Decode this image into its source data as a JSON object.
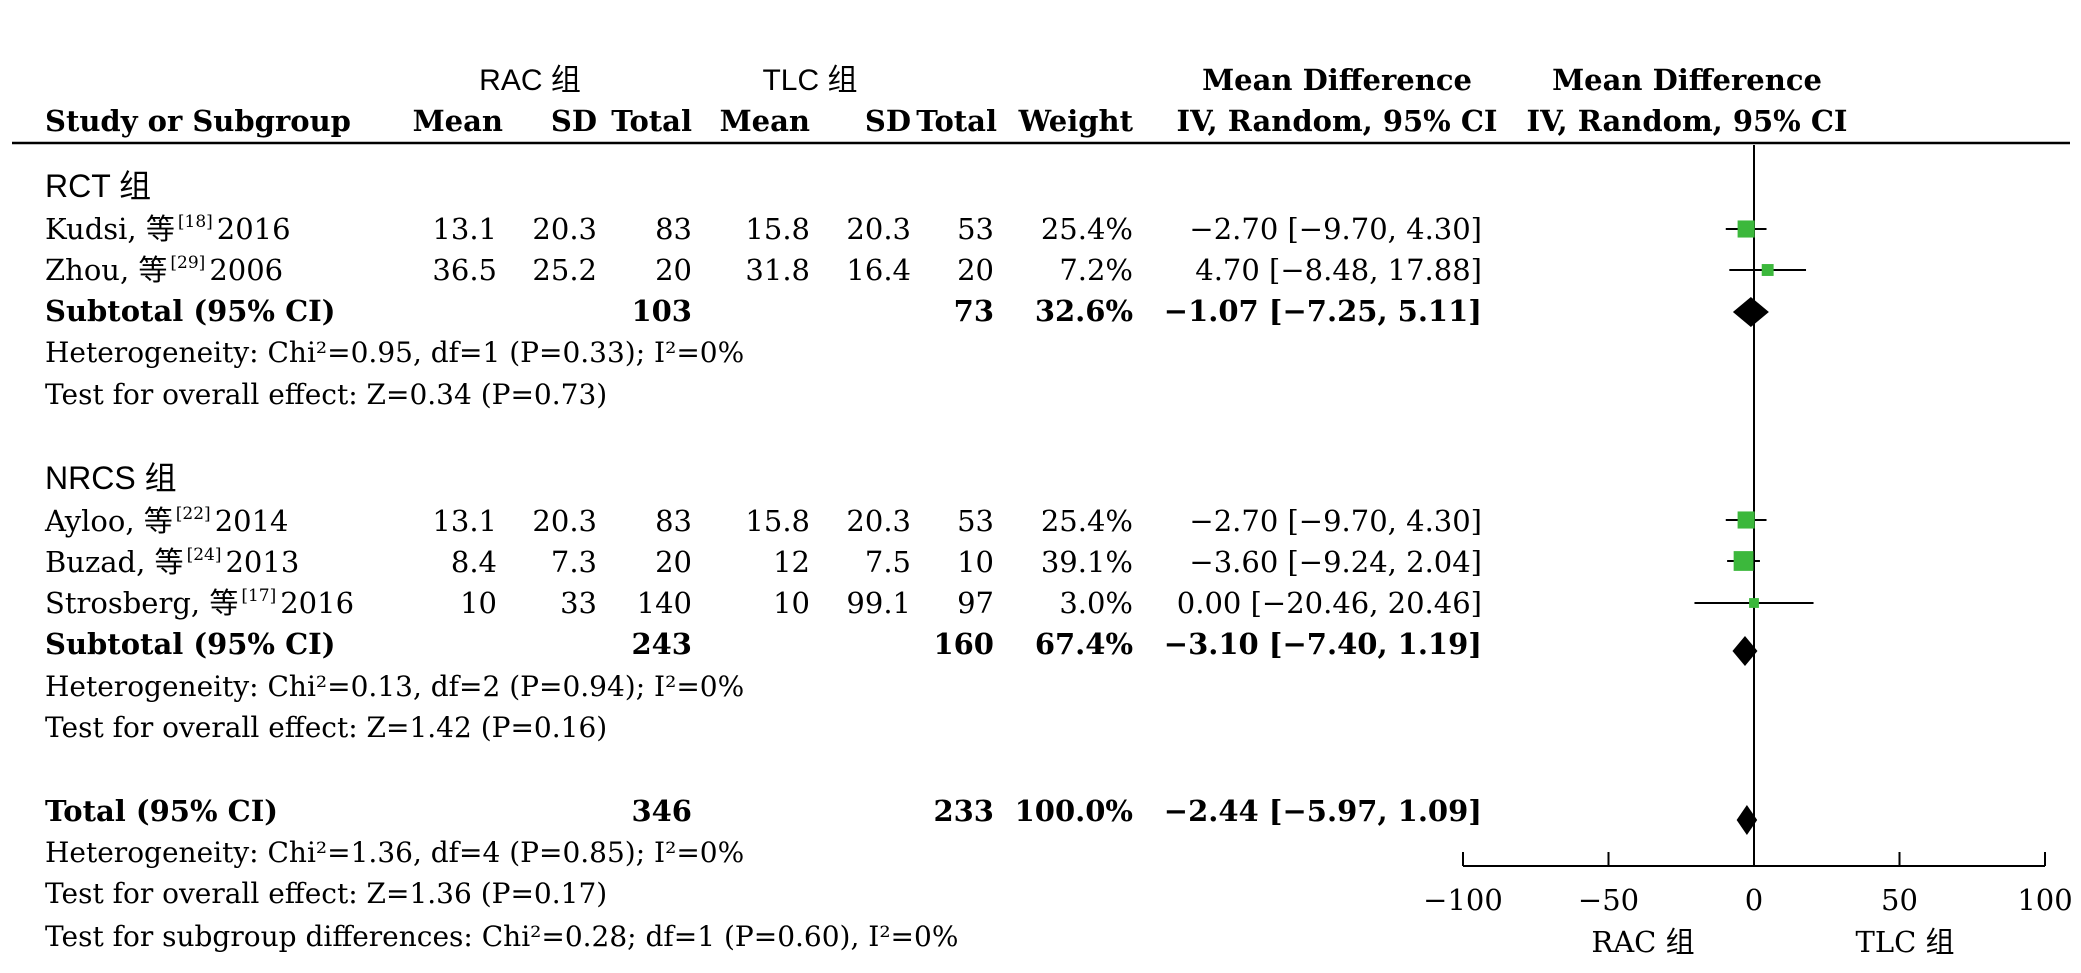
{
  "header": {
    "group_a": "RAC 组",
    "group_b": "TLC 组",
    "md_header_1": "Mean Difference",
    "md_header_2": "IV, Random, 95% CI",
    "plot_header_1": "Mean Difference",
    "plot_header_2": "IV, Random, 95% CI",
    "col_study": "Study or Subgroup",
    "col_mean_a": "Mean",
    "col_sd_a": "SD",
    "col_total_a": "Total",
    "col_mean_b": "Mean",
    "col_sd_b": "SD",
    "col_total_b": "Total",
    "col_weight": "Weight"
  },
  "subgroups": [
    {
      "title": "RCT 组",
      "studies": [
        {
          "author": "Kudsi, 等",
          "ref": "[18]",
          "year": "2016",
          "mean_a": "13.1",
          "sd_a": "20.3",
          "total_a": "83",
          "mean_b": "15.8",
          "sd_b": "20.3",
          "total_b": "53",
          "weight": "25.4%",
          "ci_text": "−2.70 [−9.70, 4.30]"
        },
        {
          "author": "Zhou, 等",
          "ref": "[29]",
          "year": "2006",
          "mean_a": "36.5",
          "sd_a": "25.2",
          "total_a": "20",
          "mean_b": "31.8",
          "sd_b": "16.4",
          "total_b": "20",
          "weight": "7.2%",
          "ci_text": "4.70 [−8.48, 17.88]"
        }
      ],
      "subtotal": {
        "label": "Subtotal (95% CI)",
        "total_a": "103",
        "total_b": "73",
        "weight": "32.6%",
        "ci_text": "−1.07 [−7.25, 5.11]"
      },
      "heterogeneity": "Heterogeneity: Chi²=0.95, df=1 (P=0.33); I²=0%",
      "overall_effect": "Test for overall effect: Z=0.34 (P=0.73)"
    },
    {
      "title": "NRCS 组",
      "studies": [
        {
          "author": "Ayloo, 等",
          "ref": "[22]",
          "year": "2014",
          "mean_a": "13.1",
          "sd_a": "20.3",
          "total_a": "83",
          "mean_b": "15.8",
          "sd_b": "20.3",
          "total_b": "53",
          "weight": "25.4%",
          "ci_text": "−2.70 [−9.70, 4.30]"
        },
        {
          "author": "Buzad, 等",
          "ref": "[24]",
          "year": "2013",
          "mean_a": "8.4",
          "sd_a": "7.3",
          "total_a": "20",
          "mean_b": "12",
          "sd_b": "7.5",
          "total_b": "10",
          "weight": "39.1%",
          "ci_text": "−3.60 [−9.24, 2.04]"
        },
        {
          "author": "Strosberg, 等",
          "ref": "[17]",
          "year": "2016",
          "mean_a": "10",
          "sd_a": "33",
          "total_a": "140",
          "mean_b": "10",
          "sd_b": "99.1",
          "total_b": "97",
          "weight": "3.0%",
          "ci_text": "0.00 [−20.46, 20.46]"
        }
      ],
      "subtotal": {
        "label": "Subtotal (95% CI)",
        "total_a": "243",
        "total_b": "160",
        "weight": "67.4%",
        "ci_text": "−3.10 [−7.40, 1.19]"
      },
      "heterogeneity": "Heterogeneity: Chi²=0.13, df=2 (P=0.94); I²=0%",
      "overall_effect": "Test for overall effect: Z=1.42 (P=0.16)"
    }
  ],
  "total": {
    "label": "Total (95% CI)",
    "total_a": "346",
    "total_b": "233",
    "weight": "100.0%",
    "ci_text": "−2.44 [−5.97, 1.09]",
    "heterogeneity": "Heterogeneity: Chi²=1.36, df=4 (P=0.85); I²=0%",
    "overall_effect": "Test for overall effect: Z=1.36 (P=0.17)",
    "subgroup_diff": "Test for subgroup differences: Chi²=0.28; df=1 (P=0.60), I²=0%"
  },
  "axis": {
    "ticks": [
      "−100",
      "−50",
      "0",
      "50",
      "100"
    ],
    "left_label": "RAC 组",
    "right_label": "TLC 组"
  },
  "chart_data": {
    "type": "forest",
    "xlim": [
      -100,
      100
    ],
    "xticks": [
      -100,
      -50,
      0,
      50,
      100
    ],
    "studies": [
      {
        "name": "Kudsi, 等 2016",
        "md": -2.7,
        "lower": -9.7,
        "upper": 4.3,
        "weight": 25.4
      },
      {
        "name": "Zhou, 等 2006",
        "md": 4.7,
        "lower": -8.48,
        "upper": 17.88,
        "weight": 7.2
      },
      {
        "name": "Ayloo, 等 2014",
        "md": -2.7,
        "lower": -9.7,
        "upper": 4.3,
        "weight": 25.4
      },
      {
        "name": "Buzad, 等 2013",
        "md": -3.6,
        "lower": -9.24,
        "upper": 2.04,
        "weight": 39.1
      },
      {
        "name": "Strosberg, 等 2016",
        "md": 0.0,
        "lower": -20.46,
        "upper": 20.46,
        "weight": 3.0
      }
    ],
    "summaries": [
      {
        "name": "Subtotal RCT 组",
        "md": -1.07,
        "lower": -7.25,
        "upper": 5.11
      },
      {
        "name": "Subtotal NRCS 组",
        "md": -3.1,
        "lower": -7.4,
        "upper": 1.19
      },
      {
        "name": "Total",
        "md": -2.44,
        "lower": -5.97,
        "upper": 1.09
      }
    ],
    "colors": {
      "study_square": "#3cb83c",
      "diamond": "#000000",
      "line": "#000000"
    }
  }
}
